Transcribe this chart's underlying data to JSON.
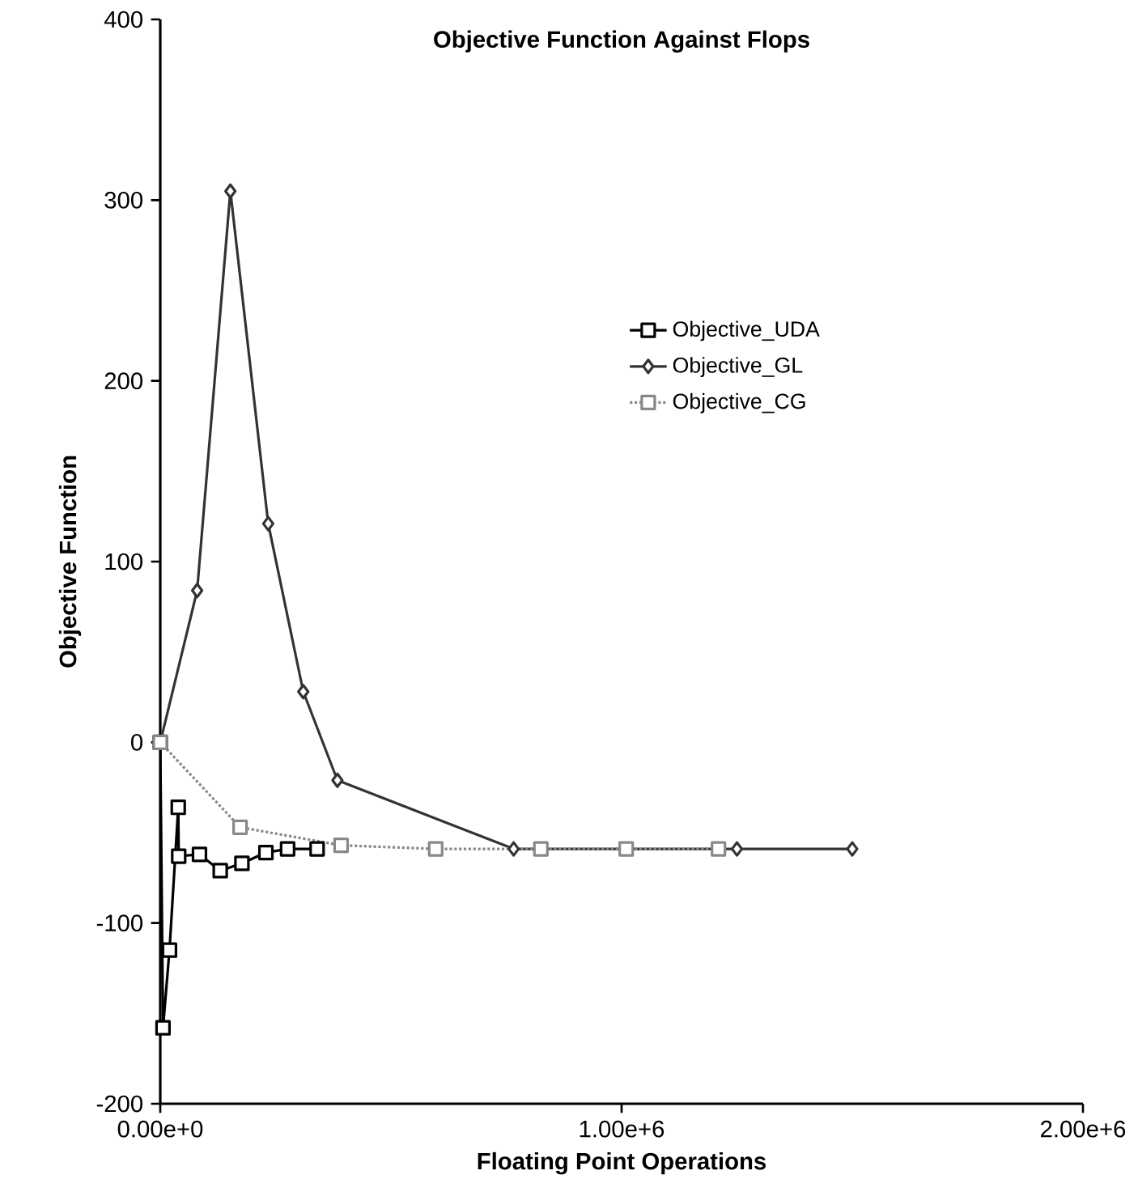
{
  "chart_data": {
    "type": "line",
    "title": "Objective Function Against Flops",
    "xlabel": "Floating Point Operations",
    "ylabel": "Objective Function",
    "xlim": [
      0,
      2000000
    ],
    "xticks": [
      {
        "value": 0,
        "label": "0.00e+0"
      },
      {
        "value": 1000000,
        "label": "1.00e+6"
      },
      {
        "value": 2000000,
        "label": "2.00e+6"
      }
    ],
    "ylim": [
      -200,
      400
    ],
    "yticks": [
      -200,
      -100,
      0,
      100,
      200,
      300,
      400
    ],
    "grid": false,
    "legend": "center",
    "series": [
      {
        "name": "Objective_UDA",
        "color": "#000000",
        "marker": "square",
        "line_style": "solid",
        "x": [
          0,
          6000,
          20000,
          39000,
          40000,
          85000,
          130000,
          177000,
          229000,
          276000,
          340000
        ],
        "values": [
          0,
          -158,
          -115,
          -36,
          -63,
          -62,
          -71,
          -67,
          -61,
          -59,
          -59
        ]
      },
      {
        "name": "Objective_GL",
        "color": "#333333",
        "marker": "diamond",
        "line_style": "solid",
        "x": [
          0,
          80000,
          152000,
          234000,
          310000,
          384000,
          766000,
          1250000,
          1500000
        ],
        "values": [
          0,
          84,
          305,
          121,
          28,
          -21,
          -59,
          -59,
          -59
        ]
      },
      {
        "name": "Objective_CG",
        "color": "#888888",
        "marker": "square",
        "line_style": "dotted",
        "x": [
          0,
          173000,
          392000,
          597000,
          825000,
          1010000,
          1210000
        ],
        "values": [
          0,
          -47,
          -57,
          -59,
          -59,
          -59,
          -59
        ]
      }
    ]
  }
}
